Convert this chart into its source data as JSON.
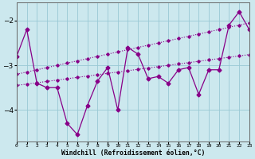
{
  "x": [
    0,
    1,
    2,
    3,
    4,
    5,
    6,
    7,
    8,
    9,
    10,
    11,
    12,
    13,
    14,
    15,
    16,
    17,
    18,
    19,
    20,
    21,
    22,
    23
  ],
  "line_main": [
    -2.8,
    -2.2,
    -3.4,
    -3.5,
    -3.5,
    -4.3,
    -4.55,
    -3.9,
    -3.35,
    -3.05,
    -4.0,
    -2.6,
    -2.75,
    -3.3,
    -3.25,
    -3.4,
    -3.1,
    -3.05,
    -3.65,
    -3.1,
    -3.1,
    -2.1,
    -1.8,
    -2.2
  ],
  "line_upper": [
    -3.2,
    -3.15,
    -3.1,
    -3.05,
    -3.0,
    -2.95,
    -2.9,
    -2.85,
    -2.8,
    -2.75,
    -2.7,
    -2.65,
    -2.6,
    -2.55,
    -2.5,
    -2.45,
    -2.4,
    -2.35,
    -2.3,
    -2.25,
    -2.2,
    -2.15,
    -2.1,
    -2.05
  ],
  "line_lower": [
    -3.45,
    -3.42,
    -3.39,
    -3.36,
    -3.33,
    -3.3,
    -3.27,
    -3.24,
    -3.21,
    -3.18,
    -3.15,
    -3.12,
    -3.09,
    -3.06,
    -3.03,
    -3.0,
    -2.97,
    -2.94,
    -2.91,
    -2.88,
    -2.85,
    -2.82,
    -2.79,
    -2.76
  ],
  "line_color": "#880088",
  "bg_color": "#cce8ee",
  "grid_color": "#99c8d4",
  "xlabel": "Windchill (Refroidissement éolien,°C)",
  "yticks": [
    -4,
    -3,
    -2
  ],
  "xticks": [
    0,
    1,
    2,
    3,
    4,
    5,
    6,
    7,
    8,
    9,
    10,
    11,
    12,
    13,
    14,
    15,
    16,
    17,
    18,
    19,
    20,
    21,
    22,
    23
  ],
  "xlim": [
    0,
    23
  ],
  "ylim": [
    -4.7,
    -1.6
  ]
}
